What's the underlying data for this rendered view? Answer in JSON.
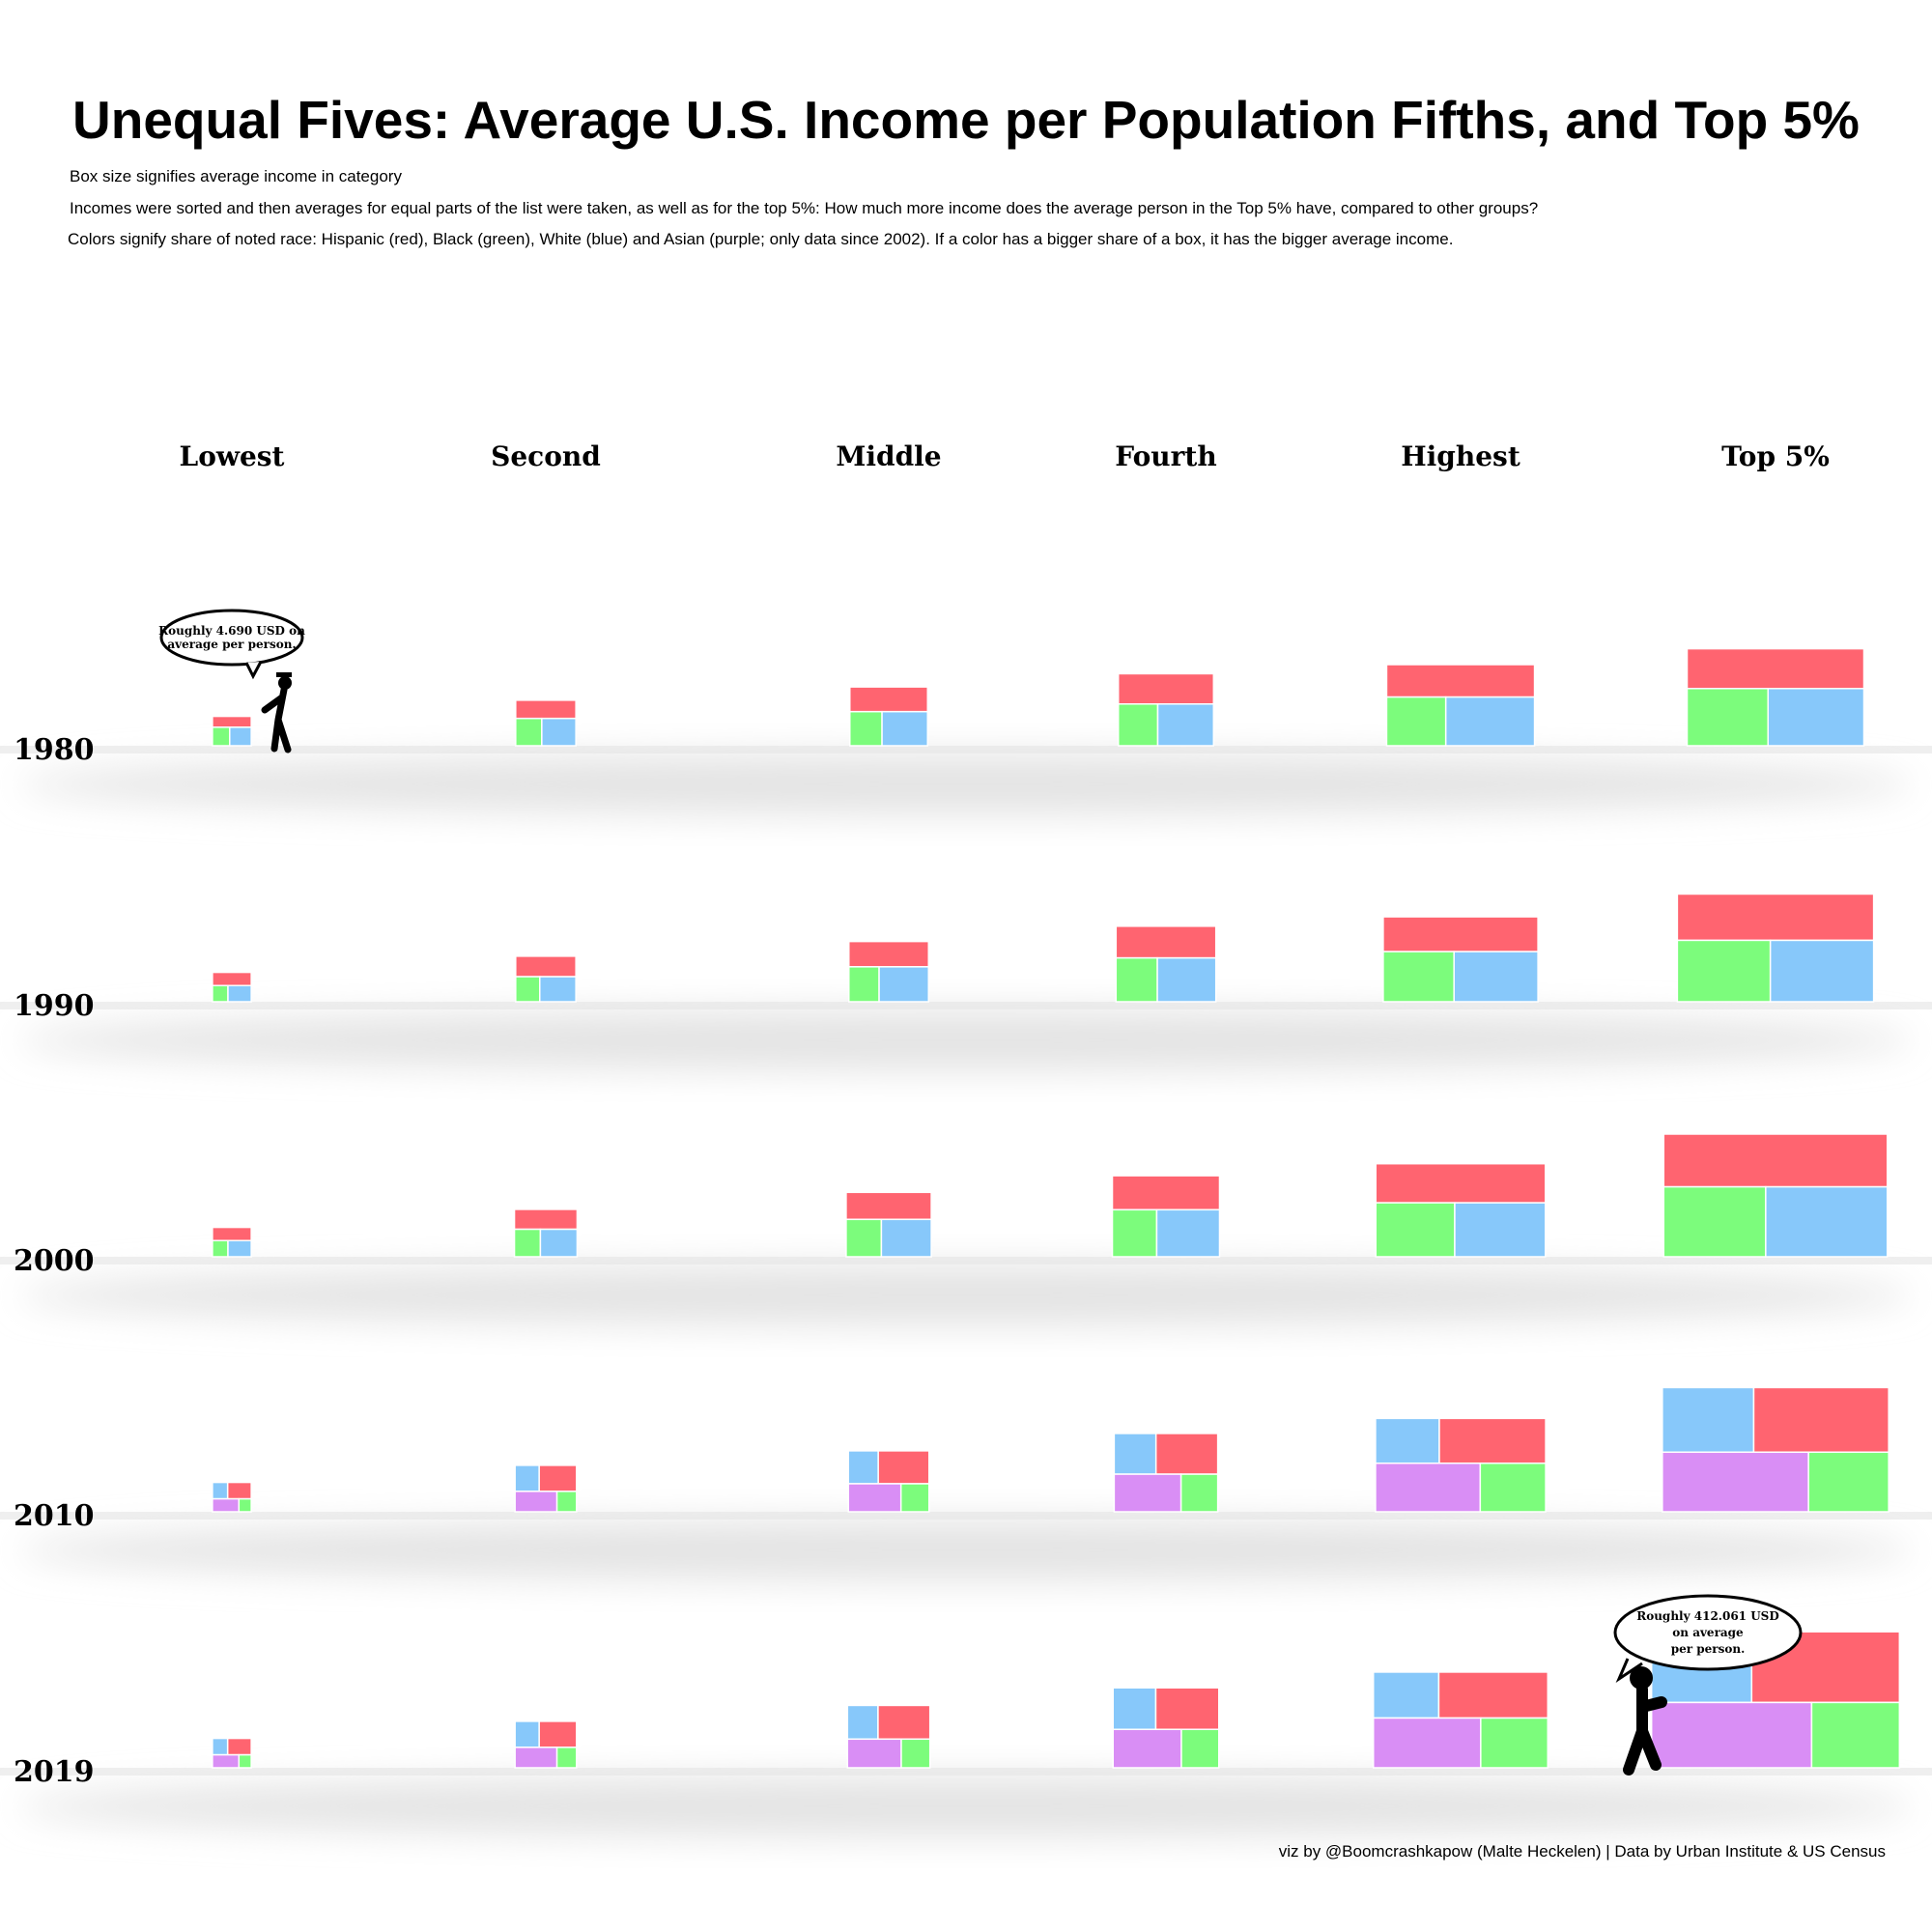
{
  "title": "Unequal Fives: Average U.S. Income per Population Fifths, and Top 5%",
  "subtitles": [
    "Box size signifies average income in category",
    "Incomes were sorted and then averages for equal parts of the list were taken, as well as for the top 5%: How much more income does the average person in the Top 5% have, compared to other groups?",
    "Colors signify share of noted race: Hispanic (red), Black (green), White (blue) and Asian (purple; only data since 2002). If a color has a bigger share of a box, it has the bigger average income."
  ],
  "caption": "viz by @Boomcrashkapow (Malte Heckelen) | Data by Urban Institute & US Census",
  "colors": {
    "Hispanic": "#ff6470",
    "Black": "#7cfc7c",
    "White": "#87c8fa",
    "Asian": "#d98ef5"
  },
  "annotations": [
    {
      "text_lines": [
        "Roughly 4.690 USD on",
        "average per person."
      ],
      "year": "1980",
      "category": "Lowest"
    },
    {
      "text_lines": [
        "Roughly 412.061 USD",
        "on average",
        "per person."
      ],
      "year": "2019",
      "category": "Top 5%"
    }
  ],
  "chart_data": {
    "type": "treemap-grid",
    "categories": [
      "Lowest",
      "Second",
      "Middle",
      "Fourth",
      "Highest",
      "Top 5%"
    ],
    "years": [
      "1980",
      "1990",
      "2000",
      "2010",
      "2019"
    ],
    "value_unit": "relative box area (approx.)",
    "series": [
      {
        "year": "1980",
        "boxes": [
          {
            "category": "Lowest",
            "total": 1.0,
            "shares": {
              "Hispanic": 0.37,
              "Black": 0.28,
              "White": 0.35
            }
          },
          {
            "category": "Second",
            "total": 2.4,
            "shares": {
              "Hispanic": 0.4,
              "Black": 0.26,
              "White": 0.34
            }
          },
          {
            "category": "Middle",
            "total": 4.0,
            "shares": {
              "Hispanic": 0.42,
              "Black": 0.24,
              "White": 0.34
            }
          },
          {
            "category": "Fourth",
            "total": 6.0,
            "shares": {
              "Hispanic": 0.42,
              "Black": 0.24,
              "White": 0.34
            }
          },
          {
            "category": "Highest",
            "total": 10.5,
            "shares": {
              "Hispanic": 0.4,
              "Black": 0.24,
              "White": 0.36
            }
          },
          {
            "category": "Top 5%",
            "total": 15.0,
            "shares": {
              "Hispanic": 0.41,
              "Black": 0.27,
              "White": 0.32
            }
          }
        ]
      },
      {
        "year": "1990",
        "boxes": [
          {
            "category": "Lowest",
            "total": 1.0,
            "shares": {
              "Hispanic": 0.45,
              "Black": 0.22,
              "White": 0.33
            }
          },
          {
            "category": "Second",
            "total": 2.4,
            "shares": {
              "Hispanic": 0.45,
              "Black": 0.22,
              "White": 0.33
            }
          },
          {
            "category": "Middle",
            "total": 4.2,
            "shares": {
              "Hispanic": 0.42,
              "Black": 0.22,
              "White": 0.36
            }
          },
          {
            "category": "Fourth",
            "total": 6.6,
            "shares": {
              "Hispanic": 0.42,
              "Black": 0.24,
              "White": 0.34
            }
          },
          {
            "category": "Highest",
            "total": 11.5,
            "shares": {
              "Hispanic": 0.41,
              "Black": 0.27,
              "White": 0.32
            }
          },
          {
            "category": "Top 5%",
            "total": 18.5,
            "shares": {
              "Hispanic": 0.43,
              "Black": 0.27,
              "White": 0.3
            }
          }
        ]
      },
      {
        "year": "2000",
        "boxes": [
          {
            "category": "Lowest",
            "total": 1.0,
            "shares": {
              "Hispanic": 0.45,
              "Black": 0.22,
              "White": 0.33
            }
          },
          {
            "category": "Second",
            "total": 2.6,
            "shares": {
              "Hispanic": 0.42,
              "Black": 0.24,
              "White": 0.34
            }
          },
          {
            "category": "Middle",
            "total": 4.8,
            "shares": {
              "Hispanic": 0.42,
              "Black": 0.24,
              "White": 0.34
            }
          },
          {
            "category": "Fourth",
            "total": 7.6,
            "shares": {
              "Hispanic": 0.42,
              "Black": 0.24,
              "White": 0.34
            }
          },
          {
            "category": "Highest",
            "total": 13.8,
            "shares": {
              "Hispanic": 0.42,
              "Black": 0.27,
              "White": 0.31
            }
          },
          {
            "category": "Top 5%",
            "total": 24.0,
            "shares": {
              "Hispanic": 0.43,
              "Black": 0.26,
              "White": 0.31
            }
          }
        ]
      },
      {
        "year": "2010",
        "boxes": [
          {
            "category": "Lowest",
            "total": 1.0,
            "shares": {
              "White": 0.22,
              "Hispanic": 0.34,
              "Asian": 0.3,
              "Black": 0.14
            }
          },
          {
            "category": "Second",
            "total": 2.5,
            "shares": {
              "White": 0.22,
              "Hispanic": 0.34,
              "Asian": 0.3,
              "Black": 0.14
            }
          },
          {
            "category": "Middle",
            "total": 4.3,
            "shares": {
              "White": 0.2,
              "Hispanic": 0.34,
              "Asian": 0.3,
              "Black": 0.16
            }
          },
          {
            "category": "Fourth",
            "total": 7.1,
            "shares": {
              "White": 0.21,
              "Hispanic": 0.31,
              "Asian": 0.31,
              "Black": 0.17
            }
          },
          {
            "category": "Highest",
            "total": 13.9,
            "shares": {
              "White": 0.18,
              "Hispanic": 0.3,
              "Asian": 0.32,
              "Black": 0.2
            }
          },
          {
            "category": "Top 5%",
            "total": 24.6,
            "shares": {
              "White": 0.21,
              "Hispanic": 0.31,
              "Asian": 0.31,
              "Black": 0.17
            }
          }
        ]
      },
      {
        "year": "2019",
        "boxes": [
          {
            "category": "Lowest",
            "total": 1.0,
            "shares": {
              "White": 0.22,
              "Hispanic": 0.34,
              "Asian": 0.3,
              "Black": 0.14
            }
          },
          {
            "category": "Second",
            "total": 2.5,
            "shares": {
              "White": 0.22,
              "Hispanic": 0.34,
              "Asian": 0.3,
              "Black": 0.14
            }
          },
          {
            "category": "Middle",
            "total": 4.5,
            "shares": {
              "White": 0.2,
              "Hispanic": 0.34,
              "Asian": 0.3,
              "Black": 0.16
            }
          },
          {
            "category": "Fourth",
            "total": 7.4,
            "shares": {
              "White": 0.21,
              "Hispanic": 0.31,
              "Asian": 0.31,
              "Black": 0.17
            }
          },
          {
            "category": "Highest",
            "total": 14.6,
            "shares": {
              "White": 0.18,
              "Hispanic": 0.3,
              "Asian": 0.32,
              "Black": 0.2
            }
          },
          {
            "category": "Top 5%",
            "total": 29.5,
            "shares": {
              "White": 0.21,
              "Hispanic": 0.31,
              "Asian": 0.31,
              "Black": 0.17
            }
          }
        ]
      }
    ]
  }
}
